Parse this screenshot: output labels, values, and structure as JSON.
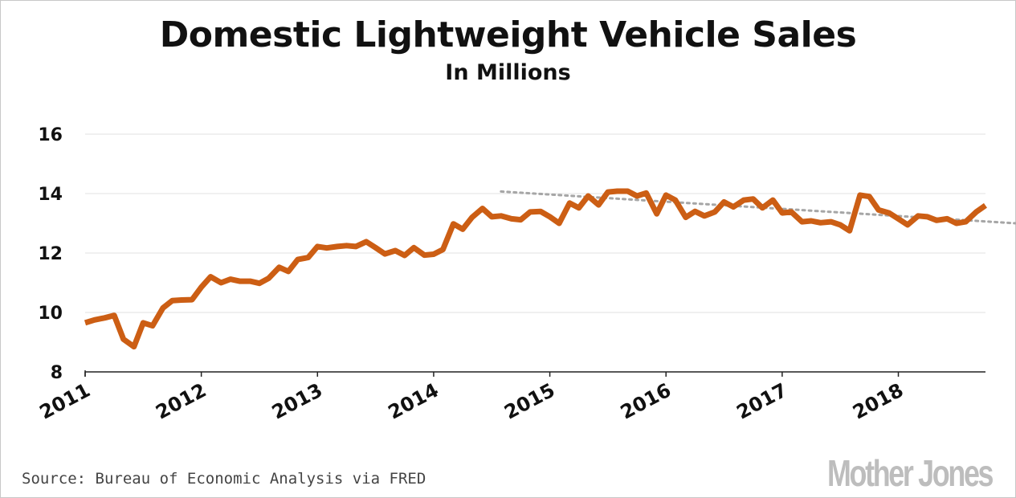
{
  "chart_data": {
    "type": "line",
    "title": "Domestic Lightweight Vehicle Sales",
    "subtitle": "In Millions",
    "xlabel": "",
    "ylabel": "",
    "ylim": [
      8,
      16.5
    ],
    "yticks": [
      8,
      10,
      12,
      14,
      16
    ],
    "xticks": [
      "2011",
      "2012",
      "2013",
      "2014",
      "2015",
      "2016",
      "2017",
      "2018"
    ],
    "xlim_years": [
      2011.0,
      2018.75
    ],
    "grid": "horizontal",
    "legend": "none",
    "series": [
      {
        "color": "#cc5e14",
        "points": [
          [
            2011.0,
            9.65
          ],
          [
            2011.08,
            9.75
          ],
          [
            2011.17,
            9.82
          ],
          [
            2011.25,
            9.9
          ],
          [
            2011.33,
            9.1
          ],
          [
            2011.42,
            8.85
          ],
          [
            2011.5,
            9.65
          ],
          [
            2011.58,
            9.55
          ],
          [
            2011.67,
            10.15
          ],
          [
            2011.75,
            10.4
          ],
          [
            2011.83,
            10.42
          ],
          [
            2011.92,
            10.43
          ],
          [
            2012.0,
            10.85
          ],
          [
            2012.08,
            11.2
          ],
          [
            2012.17,
            11.0
          ],
          [
            2012.25,
            11.12
          ],
          [
            2012.33,
            11.05
          ],
          [
            2012.42,
            11.05
          ],
          [
            2012.5,
            10.98
          ],
          [
            2012.58,
            11.15
          ],
          [
            2012.67,
            11.52
          ],
          [
            2012.75,
            11.38
          ],
          [
            2012.83,
            11.78
          ],
          [
            2012.92,
            11.85
          ],
          [
            2013.0,
            12.22
          ],
          [
            2013.08,
            12.17
          ],
          [
            2013.17,
            12.22
          ],
          [
            2013.25,
            12.25
          ],
          [
            2013.33,
            12.22
          ],
          [
            2013.42,
            12.38
          ],
          [
            2013.5,
            12.18
          ],
          [
            2013.58,
            11.97
          ],
          [
            2013.67,
            12.08
          ],
          [
            2013.75,
            11.92
          ],
          [
            2013.83,
            12.18
          ],
          [
            2013.92,
            11.93
          ],
          [
            2014.0,
            11.96
          ],
          [
            2014.08,
            12.12
          ],
          [
            2014.17,
            12.98
          ],
          [
            2014.25,
            12.8
          ],
          [
            2014.33,
            13.2
          ],
          [
            2014.42,
            13.5
          ],
          [
            2014.5,
            13.22
          ],
          [
            2014.58,
            13.25
          ],
          [
            2014.67,
            13.15
          ],
          [
            2014.75,
            13.12
          ],
          [
            2014.83,
            13.38
          ],
          [
            2014.92,
            13.4
          ],
          [
            2015.0,
            13.22
          ],
          [
            2015.08,
            13.0
          ],
          [
            2015.17,
            13.68
          ],
          [
            2015.25,
            13.52
          ],
          [
            2015.33,
            13.92
          ],
          [
            2015.42,
            13.62
          ],
          [
            2015.5,
            14.05
          ],
          [
            2015.58,
            14.08
          ],
          [
            2015.67,
            14.08
          ],
          [
            2015.75,
            13.92
          ],
          [
            2015.83,
            14.02
          ],
          [
            2015.92,
            13.32
          ],
          [
            2016.0,
            13.95
          ],
          [
            2016.08,
            13.78
          ],
          [
            2016.17,
            13.2
          ],
          [
            2016.25,
            13.4
          ],
          [
            2016.33,
            13.25
          ],
          [
            2016.42,
            13.38
          ],
          [
            2016.5,
            13.72
          ],
          [
            2016.58,
            13.55
          ],
          [
            2016.67,
            13.78
          ],
          [
            2016.75,
            13.82
          ],
          [
            2016.83,
            13.52
          ],
          [
            2016.92,
            13.78
          ],
          [
            2017.0,
            13.35
          ],
          [
            2017.08,
            13.38
          ],
          [
            2017.17,
            13.05
          ],
          [
            2017.25,
            13.08
          ],
          [
            2017.33,
            13.02
          ],
          [
            2017.42,
            13.05
          ],
          [
            2017.5,
            12.95
          ],
          [
            2017.58,
            12.75
          ],
          [
            2017.67,
            13.95
          ],
          [
            2017.75,
            13.9
          ],
          [
            2017.83,
            13.45
          ],
          [
            2017.92,
            13.35
          ],
          [
            2018.0,
            13.15
          ],
          [
            2018.08,
            12.95
          ],
          [
            2018.17,
            13.25
          ],
          [
            2018.25,
            13.22
          ],
          [
            2018.33,
            13.1
          ],
          [
            2018.42,
            13.15
          ],
          [
            2018.5,
            13.0
          ],
          [
            2018.58,
            13.05
          ],
          [
            2018.67,
            13.38
          ],
          [
            2018.75,
            13.6
          ]
        ]
      }
    ],
    "trendline": {
      "style": "dotted",
      "color": "#a6a6a6",
      "points": [
        [
          2014.58,
          14.07
        ],
        [
          2018.75,
          13.05
        ]
      ]
    }
  },
  "footer": {
    "source": "Source: Bureau of Economic Analysis via FRED",
    "logo": "Mother Jones"
  }
}
